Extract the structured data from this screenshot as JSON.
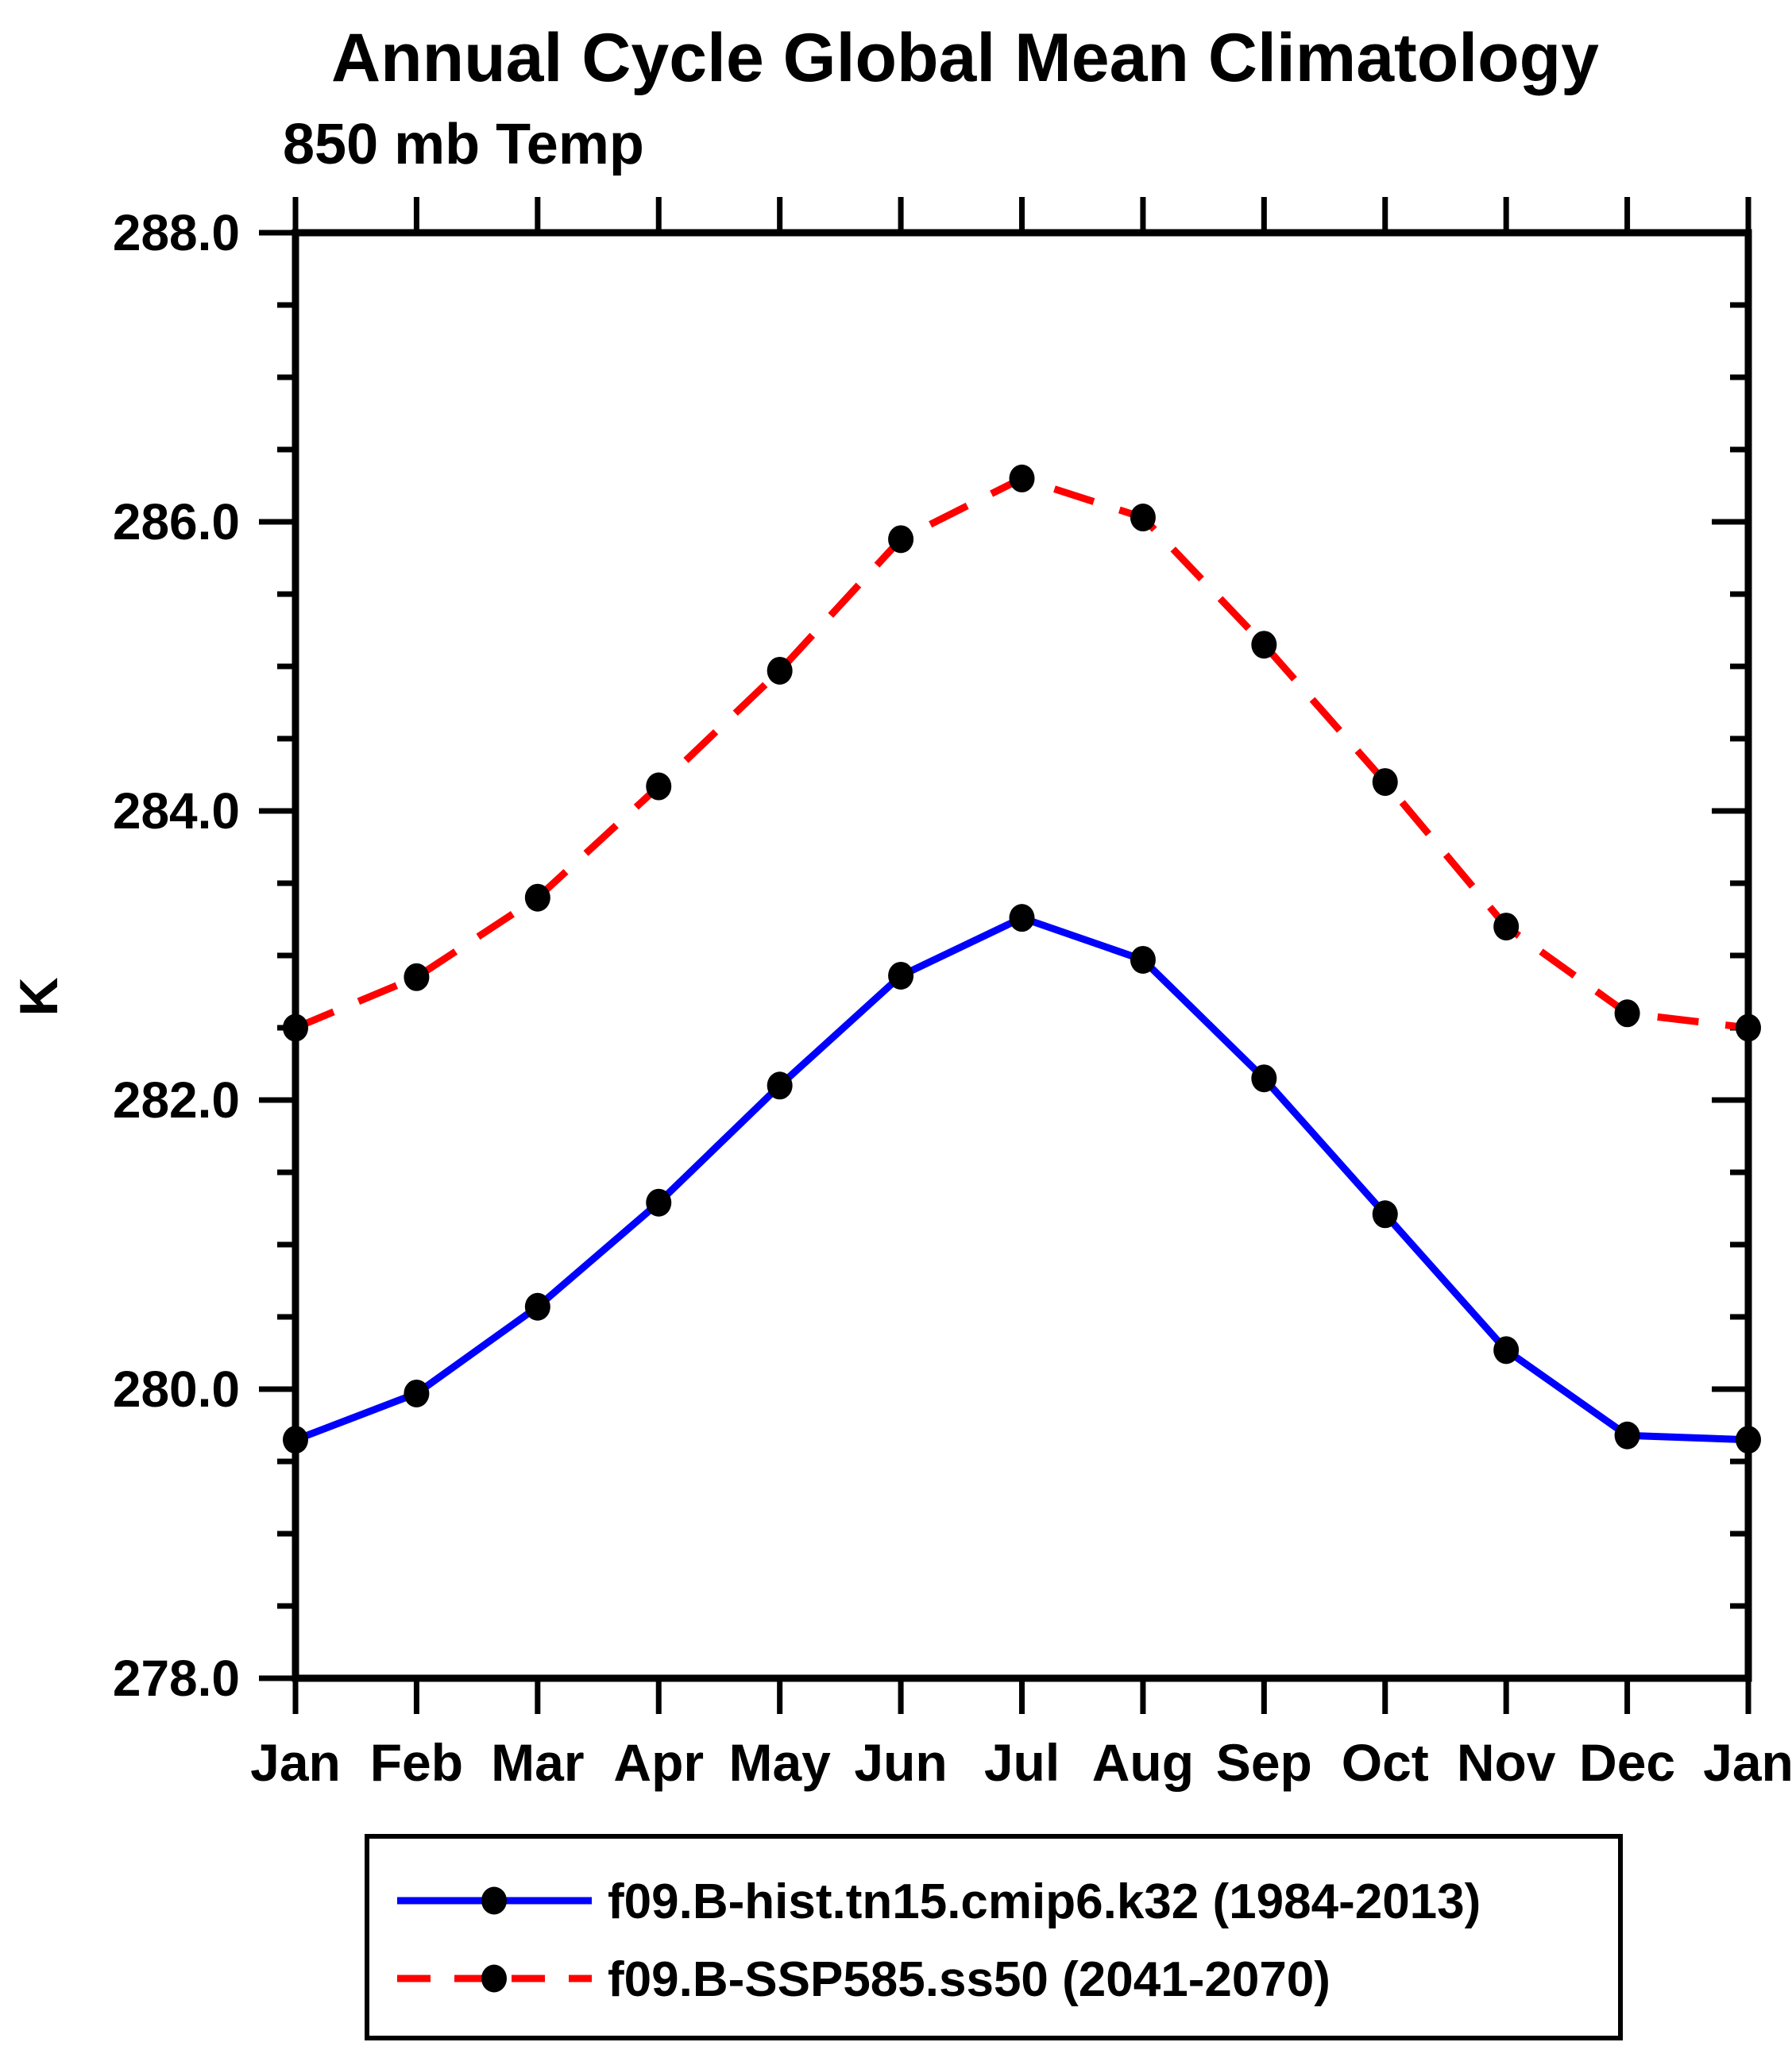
{
  "title": "Annual Cycle Global Mean Climatology",
  "subtitle": "850 mb Temp",
  "ylabel": "K",
  "legend": {
    "entries": [
      {
        "label": "f09.B-hist.tn15.cmip6.k32 (1984-2013)",
        "color": "#0000ff",
        "style": "solid"
      },
      {
        "label": "f09.B-SSP585.ss50 (2041-2070)",
        "color": "#ff0000",
        "style": "dashed"
      }
    ]
  },
  "chart_data": {
    "type": "line",
    "title": "Annual Cycle Global Mean Climatology",
    "subtitle": "850 mb Temp",
    "xlabel": "",
    "ylabel": "K",
    "categories": [
      "Jan",
      "Feb",
      "Mar",
      "Apr",
      "May",
      "Jun",
      "Jul",
      "Aug",
      "Sep",
      "Oct",
      "Nov",
      "Dec",
      "Jan"
    ],
    "ylim": [
      278.0,
      288.0
    ],
    "ytick_major": 2.0,
    "ytick_minor": 0.5,
    "ytick_labels": [
      "278.0",
      "280.0",
      "282.0",
      "284.0",
      "286.0",
      "288.0"
    ],
    "grid": false,
    "marker": "filled-black-circle",
    "legend_position": "bottom",
    "series": [
      {
        "name": "f09.B-hist.tn15.cmip6.k32 (1984-2013)",
        "color": "#0000ff",
        "style": "solid",
        "values": [
          279.65,
          279.97,
          280.57,
          281.29,
          282.1,
          282.86,
          283.26,
          282.97,
          282.15,
          281.21,
          280.27,
          279.68,
          279.65
        ]
      },
      {
        "name": "f09.B-SSP585.ss50 (2041-2070)",
        "color": "#ff0000",
        "style": "dashed",
        "values": [
          282.5,
          282.85,
          283.4,
          284.17,
          284.97,
          285.88,
          286.3,
          286.03,
          285.15,
          284.2,
          283.2,
          282.6,
          282.5
        ]
      }
    ]
  }
}
